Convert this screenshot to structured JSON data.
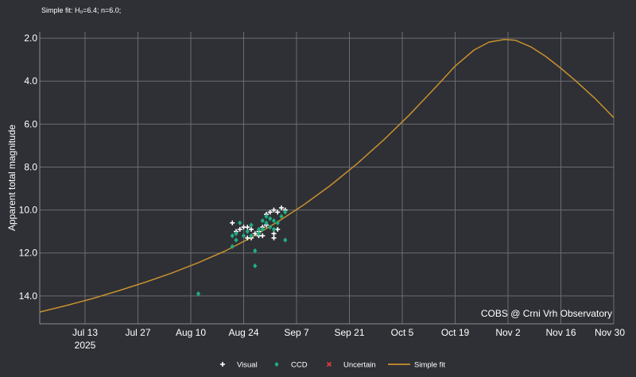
{
  "chart_data": {
    "type": "scatter",
    "title": "",
    "subtitle": "Simple fit: H₀=6.4; n=6.0;",
    "xlabel": "",
    "ylabel": "Apparent total magnitude",
    "y_inverted": true,
    "ylim": [
      15.3,
      1.7
    ],
    "xlim": [
      "2025-07-01",
      "2025-11-30"
    ],
    "grid": true,
    "x_ticks": [
      {
        "date": "2025-07-13",
        "label": "Jul 13",
        "label2": "2025"
      },
      {
        "date": "2025-07-27",
        "label": "Jul 27"
      },
      {
        "date": "2025-08-10",
        "label": "Aug 10"
      },
      {
        "date": "2025-08-24",
        "label": "Aug 24"
      },
      {
        "date": "2025-09-07",
        "label": "Sep 7"
      },
      {
        "date": "2025-09-21",
        "label": "Sep 21"
      },
      {
        "date": "2025-10-05",
        "label": "Oct 5"
      },
      {
        "date": "2025-10-19",
        "label": "Oct 19"
      },
      {
        "date": "2025-11-02",
        "label": "Nov 2"
      },
      {
        "date": "2025-11-16",
        "label": "Nov 16"
      },
      {
        "date": "2025-11-30",
        "label": "Nov 30"
      }
    ],
    "y_ticks": [
      {
        "value": 2,
        "label": "2.0"
      },
      {
        "value": 4,
        "label": "4.0"
      },
      {
        "value": 6,
        "label": "6.0"
      },
      {
        "value": 8,
        "label": "8.0"
      },
      {
        "value": 10,
        "label": "10.0"
      },
      {
        "value": 12,
        "label": "12.0"
      },
      {
        "value": 14,
        "label": "14.0"
      }
    ],
    "annotation": "COBS @ Crni Vrh Observatory",
    "legend_position": "bottom",
    "series": [
      {
        "name": "Visual",
        "kind": "points",
        "marker": "cross",
        "color": "#ffffff",
        "points": [
          {
            "x": "2025-08-21",
            "y": 10.6
          },
          {
            "x": "2025-08-22",
            "y": 11.0
          },
          {
            "x": "2025-08-23",
            "y": 10.9
          },
          {
            "x": "2025-08-24",
            "y": 10.8
          },
          {
            "x": "2025-08-25",
            "y": 11.3
          },
          {
            "x": "2025-08-25",
            "y": 10.8
          },
          {
            "x": "2025-08-26",
            "y": 11.3
          },
          {
            "x": "2025-08-26",
            "y": 10.9
          },
          {
            "x": "2025-08-27",
            "y": 11.1
          },
          {
            "x": "2025-08-28",
            "y": 11.2
          },
          {
            "x": "2025-08-28",
            "y": 11.0
          },
          {
            "x": "2025-08-29",
            "y": 10.8
          },
          {
            "x": "2025-08-29",
            "y": 11.2
          },
          {
            "x": "2025-08-30",
            "y": 10.7
          },
          {
            "x": "2025-08-30",
            "y": 10.2
          },
          {
            "x": "2025-08-31",
            "y": 10.1
          },
          {
            "x": "2025-09-01",
            "y": 10.0
          },
          {
            "x": "2025-09-01",
            "y": 11.1
          },
          {
            "x": "2025-09-01",
            "y": 11.3
          },
          {
            "x": "2025-09-02",
            "y": 10.9
          },
          {
            "x": "2025-09-02",
            "y": 10.1
          },
          {
            "x": "2025-09-03",
            "y": 9.9
          },
          {
            "x": "2025-09-04",
            "y": 10.0
          }
        ]
      },
      {
        "name": "CCD",
        "kind": "points",
        "marker": "diamond",
        "color": "#1faf83",
        "points": [
          {
            "x": "2025-08-12",
            "y": 13.9
          },
          {
            "x": "2025-08-21",
            "y": 11.2
          },
          {
            "x": "2025-08-21",
            "y": 11.7
          },
          {
            "x": "2025-08-22",
            "y": 11.1
          },
          {
            "x": "2025-08-22",
            "y": 11.4
          },
          {
            "x": "2025-08-23",
            "y": 10.6
          },
          {
            "x": "2025-08-24",
            "y": 11.2
          },
          {
            "x": "2025-08-25",
            "y": 11.0
          },
          {
            "x": "2025-08-26",
            "y": 11.2
          },
          {
            "x": "2025-08-26",
            "y": 10.7
          },
          {
            "x": "2025-08-27",
            "y": 11.9
          },
          {
            "x": "2025-08-27",
            "y": 12.6
          },
          {
            "x": "2025-08-28",
            "y": 10.9
          },
          {
            "x": "2025-08-28",
            "y": 11.1
          },
          {
            "x": "2025-08-29",
            "y": 10.5
          },
          {
            "x": "2025-08-29",
            "y": 10.9
          },
          {
            "x": "2025-08-30",
            "y": 10.3
          },
          {
            "x": "2025-08-30",
            "y": 10.6
          },
          {
            "x": "2025-08-31",
            "y": 10.8
          },
          {
            "x": "2025-08-31",
            "y": 10.4
          },
          {
            "x": "2025-09-01",
            "y": 10.5
          },
          {
            "x": "2025-09-01",
            "y": 10.9
          },
          {
            "x": "2025-09-02",
            "y": 10.6
          },
          {
            "x": "2025-09-03",
            "y": 10.3
          },
          {
            "x": "2025-09-04",
            "y": 10.1
          },
          {
            "x": "2025-09-04",
            "y": 11.4
          }
        ]
      },
      {
        "name": "Uncertain",
        "kind": "points",
        "marker": "x",
        "color": "#e03c3c",
        "points": []
      },
      {
        "name": "Simple fit",
        "kind": "line",
        "color": "#c9912e",
        "points": [
          {
            "x": "2025-07-01",
            "y": 14.75
          },
          {
            "x": "2025-07-08",
            "y": 14.45
          },
          {
            "x": "2025-07-15",
            "y": 14.12
          },
          {
            "x": "2025-07-22",
            "y": 13.75
          },
          {
            "x": "2025-07-29",
            "y": 13.36
          },
          {
            "x": "2025-08-05",
            "y": 12.93
          },
          {
            "x": "2025-08-12",
            "y": 12.45
          },
          {
            "x": "2025-08-19",
            "y": 11.92
          },
          {
            "x": "2025-08-26",
            "y": 11.28
          },
          {
            "x": "2025-09-02",
            "y": 10.55
          },
          {
            "x": "2025-09-09",
            "y": 9.75
          },
          {
            "x": "2025-09-16",
            "y": 8.85
          },
          {
            "x": "2025-09-23",
            "y": 7.85
          },
          {
            "x": "2025-09-30",
            "y": 6.75
          },
          {
            "x": "2025-10-07",
            "y": 5.55
          },
          {
            "x": "2025-10-14",
            "y": 4.25
          },
          {
            "x": "2025-10-19",
            "y": 3.3
          },
          {
            "x": "2025-10-24",
            "y": 2.55
          },
          {
            "x": "2025-10-28",
            "y": 2.18
          },
          {
            "x": "2025-11-01",
            "y": 2.06
          },
          {
            "x": "2025-11-04",
            "y": 2.1
          },
          {
            "x": "2025-11-08",
            "y": 2.4
          },
          {
            "x": "2025-11-12",
            "y": 2.85
          },
          {
            "x": "2025-11-16",
            "y": 3.4
          },
          {
            "x": "2025-11-20",
            "y": 4.0
          },
          {
            "x": "2025-11-25",
            "y": 4.8
          },
          {
            "x": "2025-11-30",
            "y": 5.7
          }
        ]
      }
    ]
  }
}
